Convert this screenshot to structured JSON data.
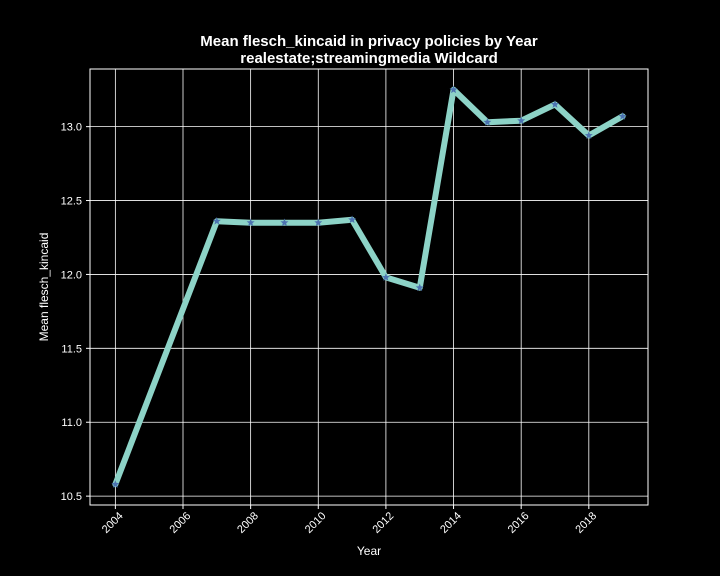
{
  "chart_data": {
    "type": "line",
    "title": "Mean flesch_kincaid in privacy policies by Year",
    "subtitle": "realestate;streamingmedia Wildcard",
    "xlabel": "Year",
    "ylabel": "Mean flesch_kincaid",
    "x": [
      2004,
      2007,
      2008,
      2009,
      2010,
      2011,
      2012,
      2013,
      2014,
      2015,
      2016,
      2017,
      2018,
      2019
    ],
    "series": [
      {
        "values": [
          10.58,
          12.36,
          12.35,
          12.35,
          12.35,
          12.37,
          11.98,
          11.91,
          13.25,
          13.03,
          13.04,
          13.15,
          12.94,
          13.07
        ]
      }
    ],
    "xlim": [
      2003.25,
      2019.75
    ],
    "ylim": [
      10.44,
      13.39
    ],
    "x_ticks": [
      2004,
      2006,
      2008,
      2010,
      2012,
      2014,
      2016,
      2018
    ],
    "x_tick_labels": [
      "2004",
      "2006",
      "2008",
      "2010",
      "2012",
      "2014",
      "2016",
      "2018"
    ],
    "y_ticks": [
      10.5,
      11.0,
      11.5,
      12.0,
      12.5,
      13.0
    ],
    "y_tick_labels": [
      "10.5",
      "11.0",
      "11.5",
      "12.0",
      "12.5",
      "13.0"
    ],
    "grid": true,
    "marker": "star",
    "colors": {
      "background": "#000000",
      "axes": "#ffffff",
      "grid": "#ffffff",
      "line": "#8dd3c7",
      "marker": "#4c72b0",
      "text": "#ffffff"
    }
  }
}
